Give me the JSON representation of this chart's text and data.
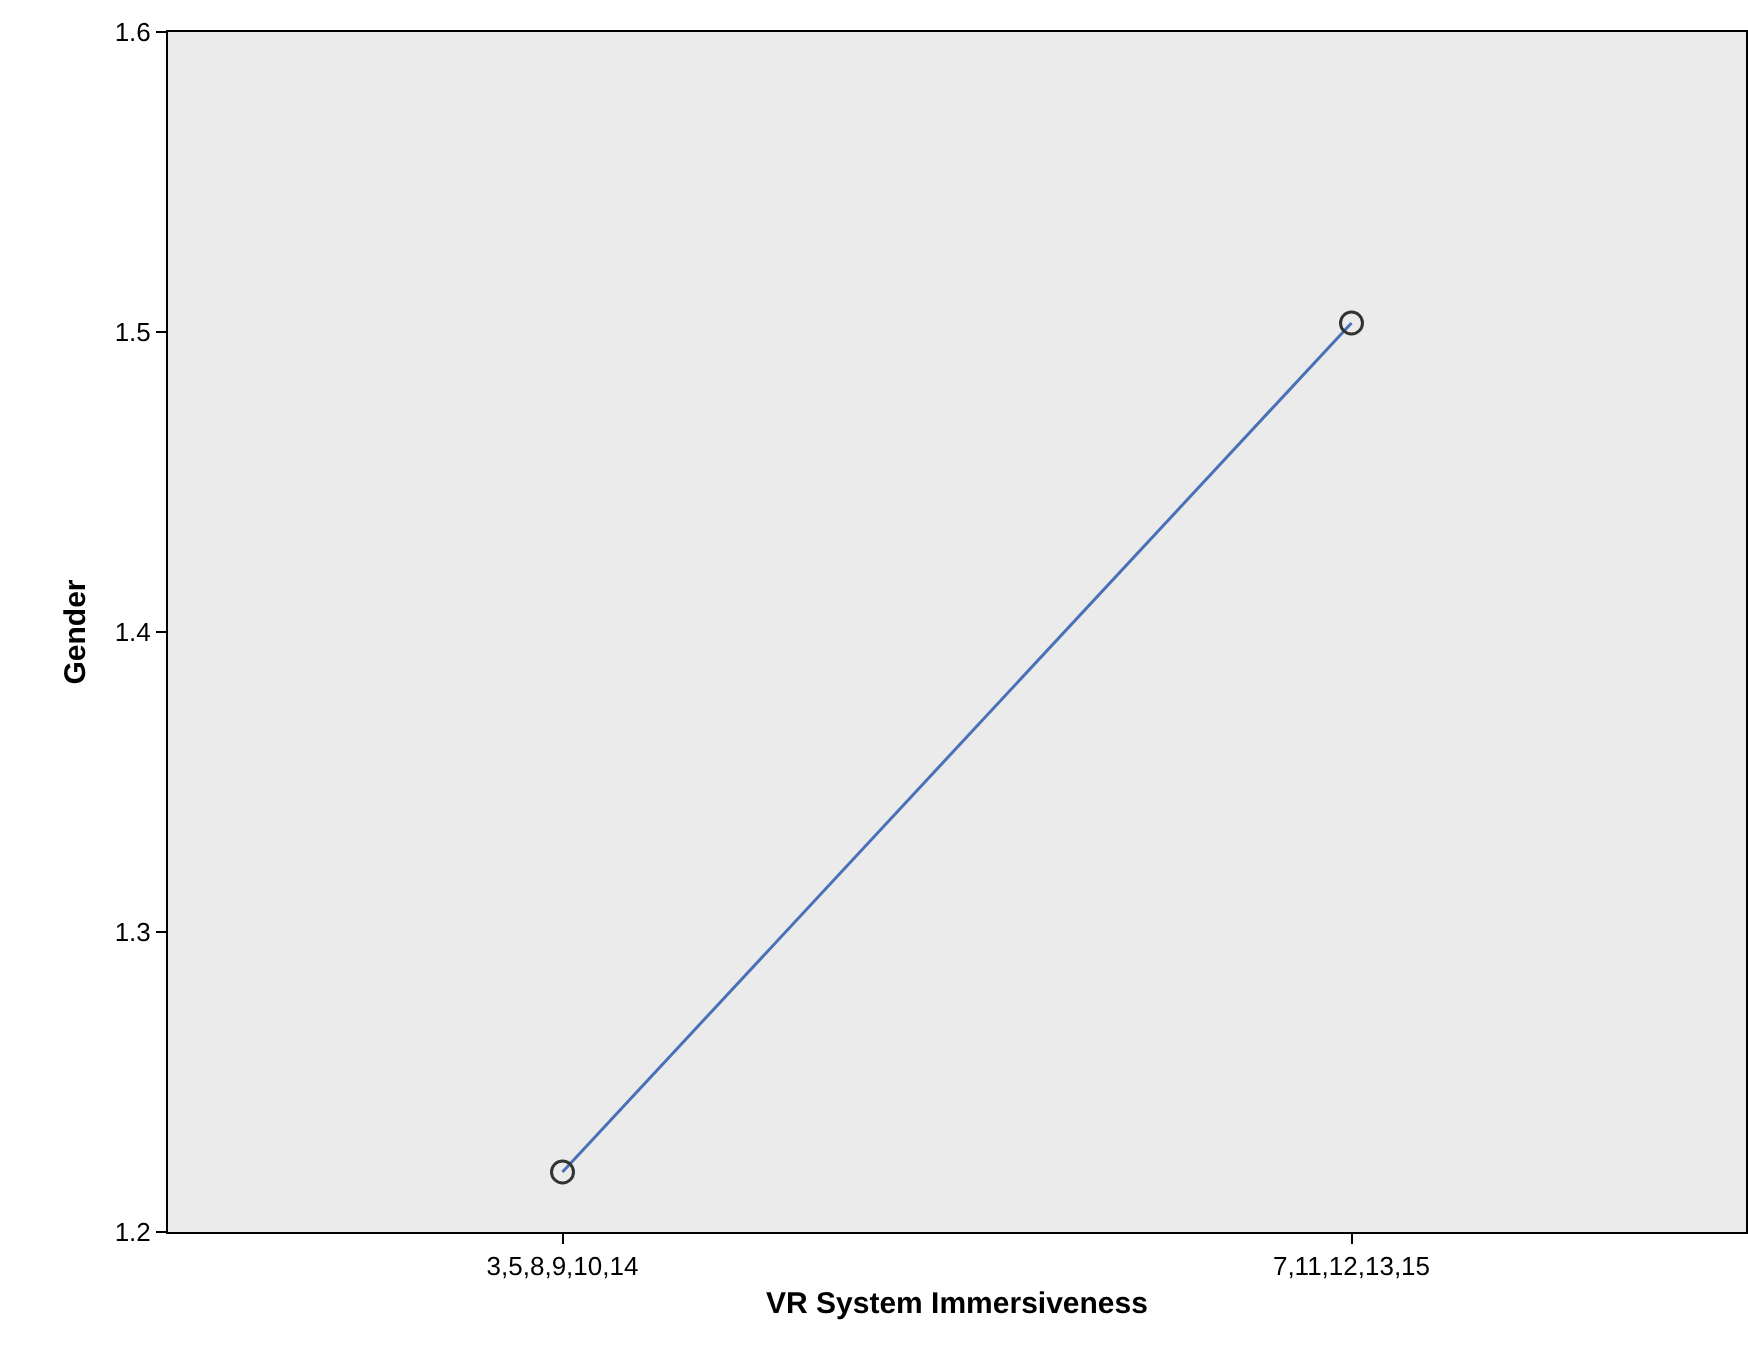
{
  "chart_data": {
    "type": "line",
    "xlabel": "VR System Immersiveness",
    "ylabel": "Gender",
    "categories": [
      "3,5,8,9,10,14",
      "7,11,12,13,15"
    ],
    "series": [
      {
        "color": "#4a70b8",
        "values": [
          1.22,
          1.503
        ]
      }
    ],
    "ylim": [
      1.2,
      1.6
    ],
    "yticks": [
      1.2,
      1.3,
      1.4,
      1.5,
      1.6
    ],
    "grid": false,
    "marker": "circle",
    "line_style": "solid"
  }
}
